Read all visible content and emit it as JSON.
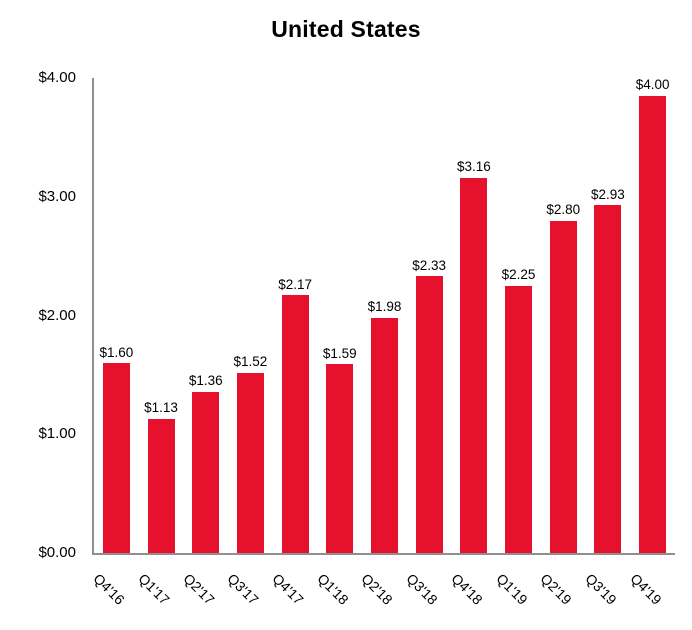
{
  "chart_data": {
    "type": "bar",
    "title": "United States",
    "categories": [
      "Q4'16",
      "Q1'17",
      "Q2'17",
      "Q3'17",
      "Q4'17",
      "Q1'18",
      "Q2'18",
      "Q3'18",
      "Q4'18",
      "Q1'19",
      "Q2'19",
      "Q3'19",
      "Q4'19"
    ],
    "values": [
      1.6,
      1.13,
      1.36,
      1.52,
      2.17,
      1.59,
      1.98,
      2.33,
      3.16,
      2.25,
      2.8,
      2.93,
      4.0
    ],
    "value_labels": [
      "$1.60",
      "$1.13",
      "$1.36",
      "$1.52",
      "$2.17",
      "$1.59",
      "$1.98",
      "$2.33",
      "$3.16",
      "$2.25",
      "$2.80",
      "$2.93",
      "$4.00"
    ],
    "xlabel": "",
    "ylabel": "",
    "ylim": [
      0,
      4
    ],
    "yticks": [
      {
        "value": 0,
        "label": "$0.00"
      },
      {
        "value": 1,
        "label": "$1.00"
      },
      {
        "value": 2,
        "label": "$2.00"
      },
      {
        "value": 3,
        "label": "$3.00"
      },
      {
        "value": 4,
        "label": "$4.00"
      }
    ],
    "grid": false,
    "legend_position": "none",
    "bar_color": "#e6112d",
    "axis_color": "#8f8f8f",
    "text_color": "#000000"
  }
}
